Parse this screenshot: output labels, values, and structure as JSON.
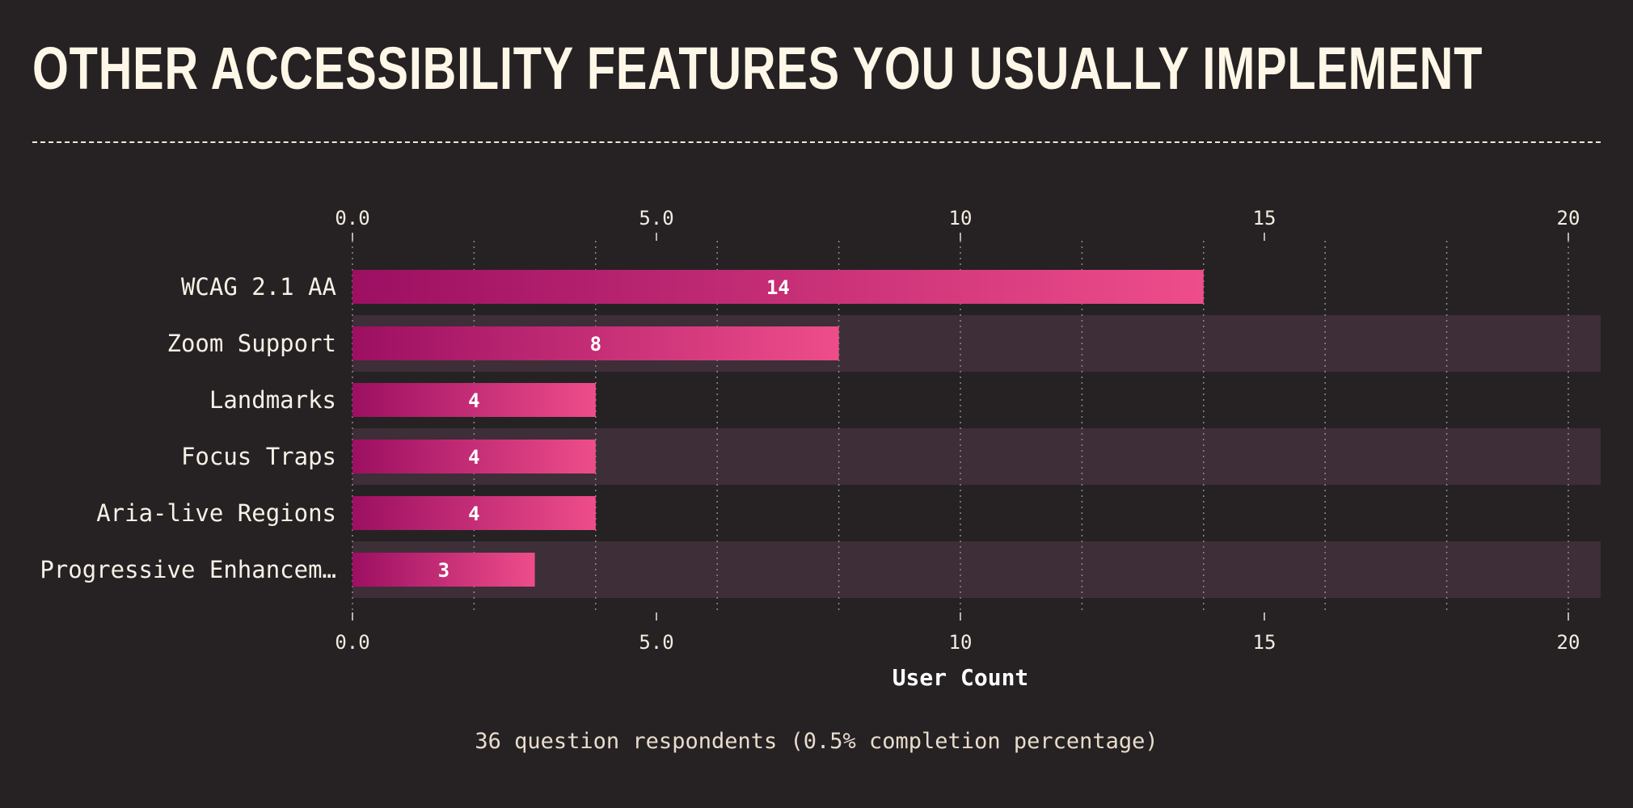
{
  "title": "OTHER ACCESSIBILITY FEATURES YOU USUALLY IMPLEMENT",
  "footnote": "36 question respondents (0.5% completion percentage)",
  "colors": {
    "background": "#262223",
    "band": "#3e2e38",
    "bar_start": "#9c0f62",
    "bar_end": "#ee4d8a",
    "text": "#fef7e8"
  },
  "chart_data": {
    "type": "bar",
    "orientation": "horizontal",
    "categories": [
      "WCAG 2.1 AA",
      "Zoom Support",
      "Landmarks",
      "Focus Traps",
      "Aria-live Regions",
      "Progressive Enhancem…"
    ],
    "values": [
      14,
      8,
      4,
      4,
      4,
      3
    ],
    "xlabel": "User Count",
    "xlim": [
      0,
      20.5
    ],
    "ticks": [
      0,
      5,
      10,
      15,
      20
    ],
    "tick_labels": [
      "0.0",
      "5.0",
      "10",
      "15",
      "20"
    ],
    "minor_gridlines": [
      2,
      4,
      6,
      8,
      10,
      12,
      14,
      16,
      18,
      20
    ],
    "grid": true,
    "legend": "none"
  }
}
